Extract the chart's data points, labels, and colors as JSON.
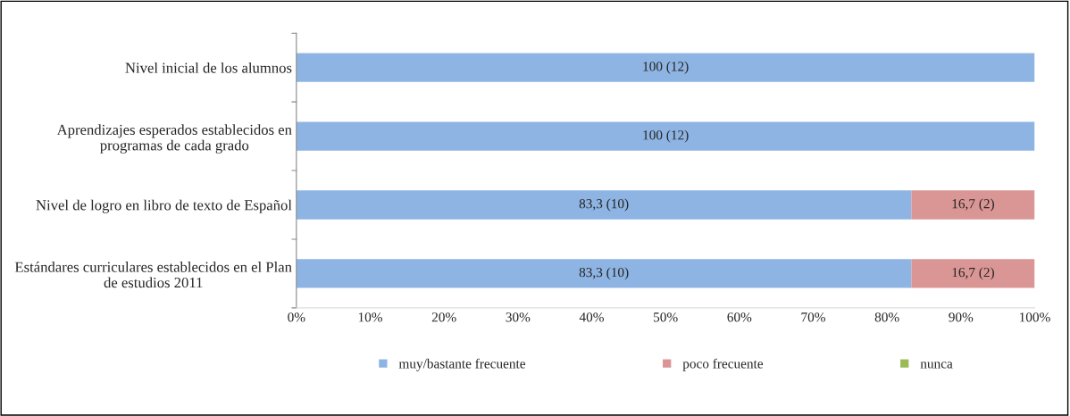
{
  "chart_data": {
    "type": "bar",
    "orientation": "horizontal",
    "stacked": true,
    "categories": [
      "Nivel inicial de los alumnos",
      "Aprendizajes esperados establecidos en programas de cada grado",
      "Nivel de logro en libro de texto de Español",
      "Estándares curriculares establecidos en el Plan de estudios 2011"
    ],
    "series": [
      {
        "name": "muy/bastante frecuente",
        "color": "#8eb4e3",
        "values": [
          100,
          100,
          83.3,
          83.3
        ],
        "value_labels": [
          "100 (12)",
          "100 (12)",
          "83,3 (10)",
          "83,3 (10)"
        ]
      },
      {
        "name": "poco frecuente",
        "color": "#d99694",
        "values": [
          null,
          null,
          16.7,
          16.7
        ],
        "value_labels": [
          null,
          null,
          "16,7 (2)",
          "16,7 (2)"
        ]
      },
      {
        "name": "nunca",
        "color": "#9bbb59",
        "values": [
          null,
          null,
          null,
          null
        ],
        "value_labels": [
          null,
          null,
          null,
          null
        ]
      }
    ],
    "xlim": [
      0,
      100
    ],
    "xticks": [
      {
        "value": 0,
        "label": "0%"
      },
      {
        "value": 10,
        "label": "10%"
      },
      {
        "value": 20,
        "label": "20%"
      },
      {
        "value": 30,
        "label": "30%"
      },
      {
        "value": 40,
        "label": "40%"
      },
      {
        "value": 50,
        "label": "50%"
      },
      {
        "value": 60,
        "label": "60%"
      },
      {
        "value": 70,
        "label": "70%"
      },
      {
        "value": 80,
        "label": "80%"
      },
      {
        "value": 90,
        "label": "90%"
      },
      {
        "value": 100,
        "label": "100%"
      }
    ],
    "grid": false,
    "legend": "bottom"
  }
}
